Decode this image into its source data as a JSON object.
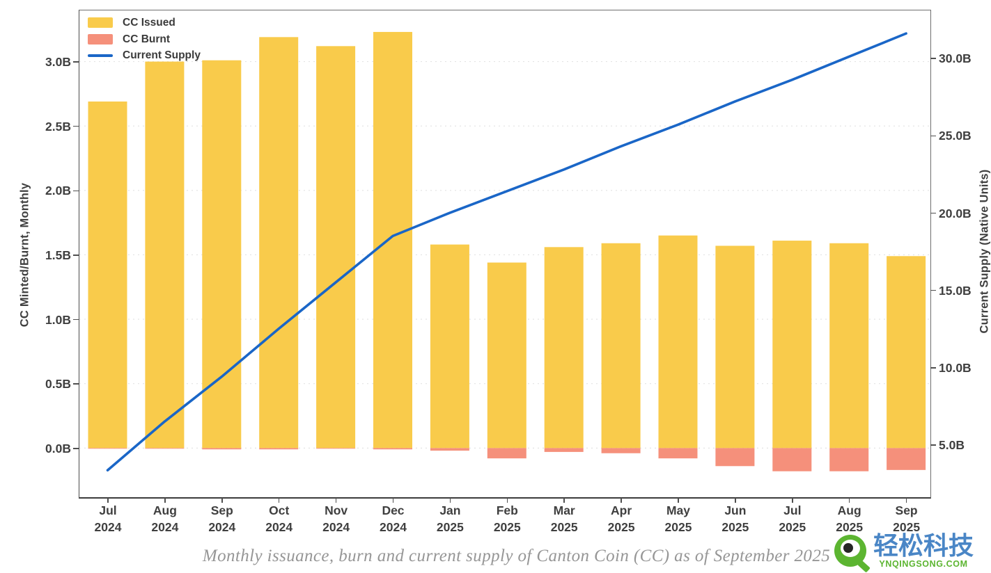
{
  "caption": "Monthly issuance, burn and current supply of Canton Coin (CC) as of September 2025",
  "legend": [
    {
      "label": "CC Issued",
      "color": "#F9CB4B",
      "swatch": "rect"
    },
    {
      "label": "CC Burnt",
      "color": "#F5907B",
      "swatch": "rect"
    },
    {
      "label": "Current Supply",
      "color": "#1A66C7",
      "swatch": "line"
    }
  ],
  "watermark": {
    "brand": "轻松科技",
    "domain": "YNQINGSONG.COM",
    "green": "#5CB531",
    "blue": "#4A86C6",
    "logo": "magnifier-eye-icon"
  },
  "chart_data": {
    "type": "bar+line",
    "title": "Monthly issuance, burn and current supply of Canton Coin (CC) as of September 2025",
    "categories": [
      "Jul 2024",
      "Aug 2024",
      "Sep 2024",
      "Oct 2024",
      "Nov 2024",
      "Dec 2024",
      "Jan 2025",
      "Feb 2025",
      "Mar 2025",
      "Apr 2025",
      "May 2025",
      "Jun 2025",
      "Jul 2025",
      "Aug 2025",
      "Sep 2025"
    ],
    "series": [
      {
        "name": "CC Issued",
        "type": "bar",
        "axis": "left",
        "color": "#F9CB4B",
        "values": [
          2.69,
          3.0,
          3.01,
          3.19,
          3.12,
          3.23,
          1.58,
          1.44,
          1.56,
          1.59,
          1.65,
          1.57,
          1.61,
          1.59,
          1.49
        ]
      },
      {
        "name": "CC Burnt",
        "type": "bar",
        "axis": "left",
        "color": "#F5907B",
        "values": [
          -0.005,
          -0.005,
          -0.01,
          -0.01,
          -0.005,
          -0.01,
          -0.02,
          -0.08,
          -0.03,
          -0.04,
          -0.08,
          -0.14,
          -0.18,
          -0.18,
          -0.17
        ]
      },
      {
        "name": "Current Supply",
        "type": "line",
        "axis": "right",
        "color": "#1A66C7",
        "values": [
          3.35,
          6.5,
          9.4,
          12.5,
          15.5,
          18.5,
          20.0,
          21.4,
          22.8,
          24.3,
          25.7,
          27.2,
          28.6,
          30.1,
          31.6
        ]
      }
    ],
    "ylabel_left": "CC Minted/Burnt, Monthly",
    "ylabel_right": "Current Supply (Native Units)",
    "yticks_left": {
      "labels": [
        "0.0B",
        "0.5B",
        "1.0B",
        "1.5B",
        "2.0B",
        "2.5B",
        "3.0B"
      ],
      "values": [
        0,
        0.5,
        1,
        1.5,
        2,
        2.5,
        3
      ]
    },
    "yticks_right": {
      "labels": [
        "5.0B",
        "10.0B",
        "15.0B",
        "20.0B",
        "25.0B",
        "30.0B"
      ],
      "values": [
        5,
        10,
        15,
        20,
        25,
        30
      ]
    },
    "ylim_left": [
      -0.376,
      3.397
    ],
    "ylim_right": [
      1.65,
      33.09
    ],
    "grid": "dashed-horizontal",
    "legend_position": "upper-left"
  }
}
